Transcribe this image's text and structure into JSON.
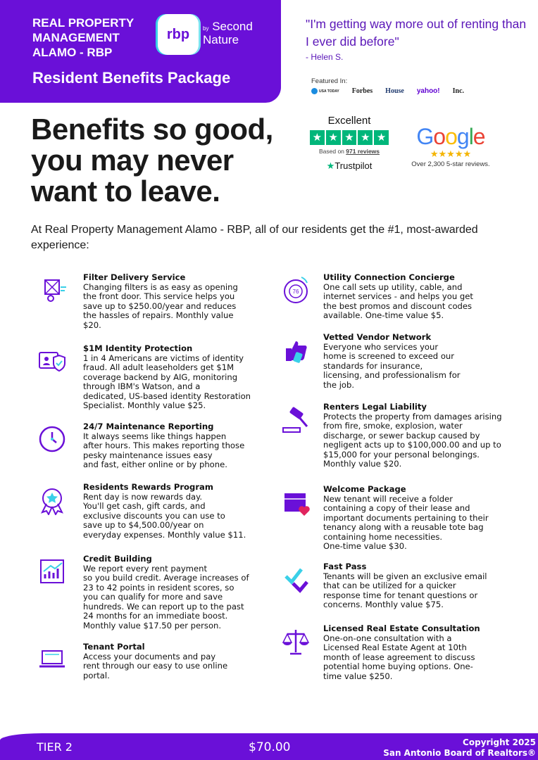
{
  "header": {
    "company": "REAL PROPERTY\nMANAGEMENT\nALAMO - RBP",
    "logo_text": "rbp",
    "logo_by": "by",
    "logo_partner": "Second\nNature",
    "package_title": "Resident Benefits Package"
  },
  "testimonial": {
    "quote": "\"I'm getting way more out of renting than I ever did before\"",
    "author": "- Helen S."
  },
  "featured": {
    "label": "Featured In:",
    "outlets": [
      "USA TODAY",
      "Forbes",
      "House",
      "yahoo!",
      "Inc."
    ]
  },
  "trustpilot": {
    "rating": "Excellent",
    "stars": 5,
    "reviews_prefix": "Based on",
    "reviews_count": "971 reviews",
    "brand": "Trustpilot"
  },
  "google": {
    "brand": "Google",
    "stars": "★★★★★",
    "text": "Over 2,300 5-star reviews."
  },
  "headline": "Benefits so good,\nyou may never\nwant to leave.",
  "intro": "At Real Property Management Alamo - RBP, all of our residents get the #1, most-awarded experience:",
  "left_items": [
    {
      "icon": "filter-delivery-icon",
      "title": "Filter Delivery Service",
      "desc": "Changing filters is as easy as opening\nthe front door. This service helps you\nsave up to $250.00/year and reduces\nthe hassles of repairs. Monthly value\n$20."
    },
    {
      "icon": "identity-shield-icon",
      "title": "$1M Identity Protection",
      "desc": "1 in 4 Americans are victims of identity\nfraud. All adult leaseholders get $1M\ncoverage backend by AIG, monitoring\nthrough IBM's Watson, and a\ndedicated, US-based identity Restoration\nSpecialist. Monthly value $25."
    },
    {
      "icon": "clock-icon",
      "title": "24/7 Maintenance Reporting",
      "desc": "It always seems like things happen\nafter hours. This makes reporting those\npesky maintenance issues easy\nand fast, either online or by phone."
    },
    {
      "icon": "award-ribbon-icon",
      "title": "Residents Rewards Program",
      "desc": "Rent day is now rewards day.\nYou'll get cash, gift cards, and\nexclusive discounts you can use to\nsave up to $4,500.00/year on\neveryday expenses. Monthly value $11."
    },
    {
      "icon": "credit-chart-icon",
      "title": "Credit Building",
      "desc": "We report every rent payment\nso you build credit. Average increases of\n23 to 42 points in resident scores, so\nyou can qualify for more and save\nhundreds. We can report up to the past\n24 months for an immediate boost.\nMonthly value $17.50 per person."
    },
    {
      "icon": "laptop-icon",
      "title": "Tenant Portal",
      "desc": "Access your documents and pay\nrent through our easy to use online\nportal."
    }
  ],
  "right_items": [
    {
      "icon": "thermostat-icon",
      "title": "Utility Connection Concierge",
      "desc": "One call sets up utility, cable, and\ninternet services - and helps you get\nthe best promos and discount codes\navailable. One-time value $5."
    },
    {
      "icon": "thumbs-up-icon",
      "title": "Vetted Vendor Network",
      "desc": "Everyone who services your\nhome is screened to exceed our\nstandards for insurance,\nlicensing, and professionalism for\nthe job."
    },
    {
      "icon": "gavel-icon",
      "title": "Renters Legal Liability",
      "desc": "Protects the property from damages arising\nfrom fire, smoke, explosion, water\ndischarge, or sewer backup caused by\nnegligent acts up to $100,000.00 and up to\n$15,000 for your personal belongings.\nMonthly value $20."
    },
    {
      "icon": "package-heart-icon",
      "title": "Welcome Package",
      "desc": "New tenant will receive a folder\ncontaining a copy of their lease and\nimportant documents pertaining to their\ntenancy along with a reusable tote bag\ncontaining home necessities.\nOne-time value $30."
    },
    {
      "icon": "fast-pass-icon",
      "title": "Fast Pass",
      "desc": "Tenants will be given an exclusive email\nthat can be utilized for a quicker\nresponse time for tenant questions or\nconcerns. Monthly value $75."
    },
    {
      "icon": "scales-icon",
      "title": "Licensed Real Estate Consultation",
      "desc": "One-on-one consultation with a\nLicensed Real Estate Agent at 10th\nmonth of lease agreement to discuss\npotential home buying options. One-\ntime value $250."
    }
  ],
  "footer": {
    "tier": "TIER 2",
    "price": "$70.00",
    "copyright": "Copyright 2025",
    "board": "San Antonio Board of Realtors®"
  },
  "colors": {
    "brand_purple": "#6a10d8",
    "quote_purple": "#5a16b8",
    "trustpilot_green": "#00b67a",
    "google_star": "#f4b400"
  }
}
